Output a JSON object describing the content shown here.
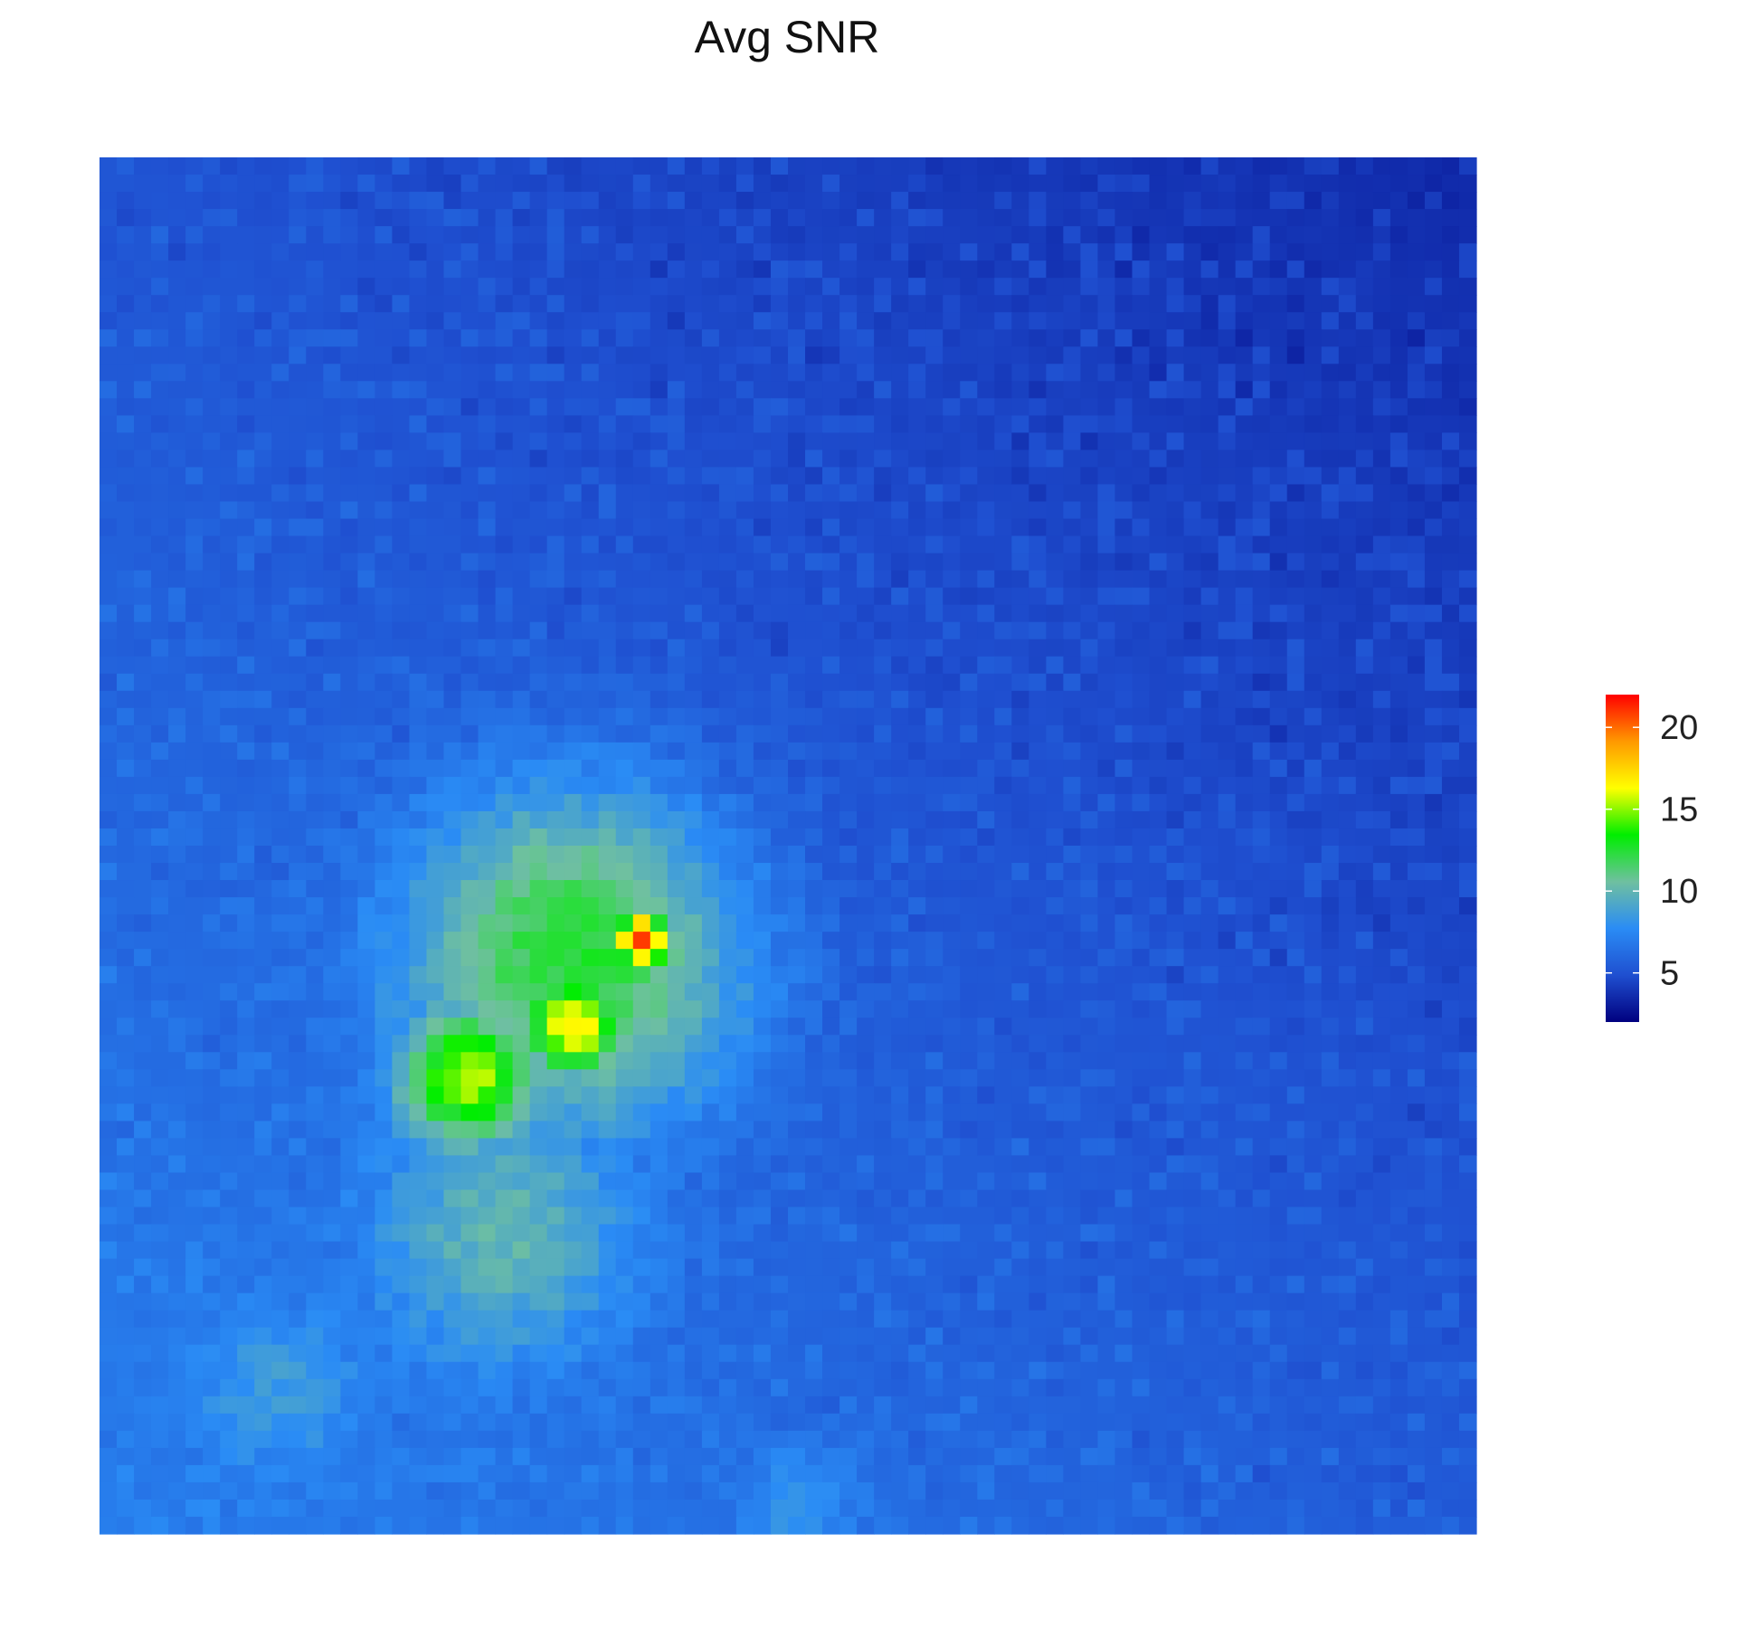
{
  "chart_data": {
    "type": "heatmap",
    "title": "Avg  SNR",
    "xlabel": "",
    "ylabel": "",
    "grid": false,
    "n_cols": 80,
    "n_rows": 80,
    "value_range": [
      2,
      22
    ],
    "background_trend": {
      "top_right": 3.0,
      "bottom_left": 6.5,
      "noise_amplitude": 1.4
    },
    "hotspots": [
      {
        "col": 31,
        "row": 45,
        "value": 21.5,
        "radius": 1.2
      },
      {
        "col": 27,
        "row": 50,
        "value": 17.0,
        "radius": 2.2
      },
      {
        "col": 21,
        "row": 53,
        "value": 15.5,
        "radius": 3.0
      },
      {
        "col": 27,
        "row": 46,
        "value": 12.5,
        "radius": 7.5
      },
      {
        "col": 23,
        "row": 62,
        "value": 10.0,
        "radius": 6.0
      },
      {
        "col": 10,
        "row": 71,
        "value": 8.5,
        "radius": 4.0
      },
      {
        "col": 40,
        "row": 78,
        "value": 8.0,
        "radius": 3.0
      }
    ],
    "colorbar": {
      "ticks": [
        5,
        10,
        15,
        20
      ],
      "tick_labels": [
        "5",
        "10",
        "15",
        "20"
      ],
      "colors": [
        "#00007f",
        "#1f4fd0",
        "#2a8cf5",
        "#6fc0a0",
        "#00ee00",
        "#ffff00",
        "#ff9900",
        "#ff0000"
      ],
      "placement": "right"
    }
  }
}
